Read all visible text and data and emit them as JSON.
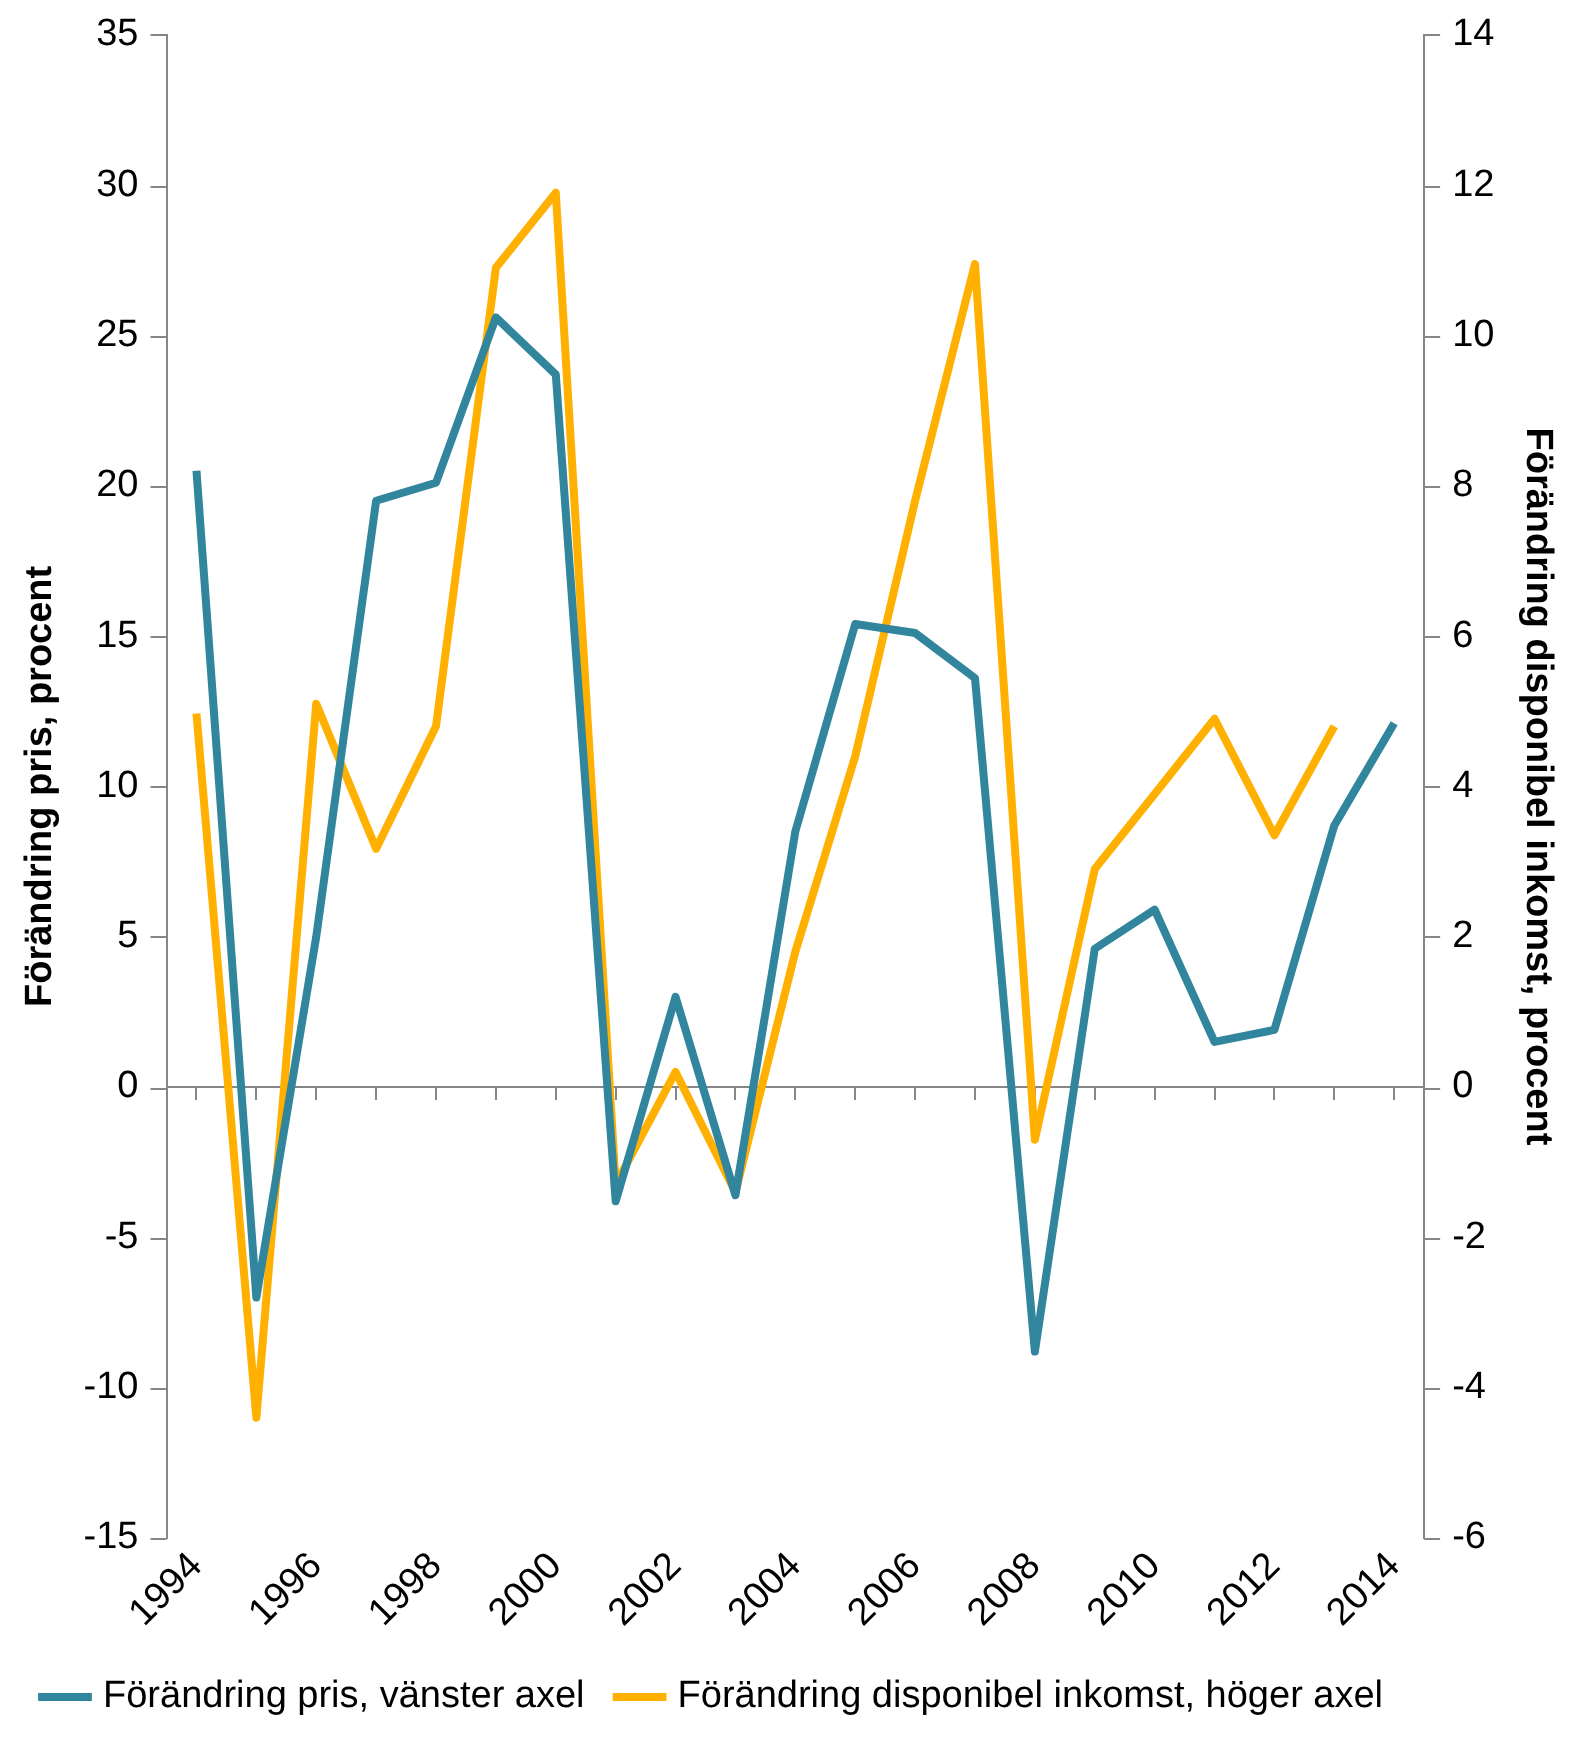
{
  "chart_data": {
    "type": "line",
    "ylabel": "Förändring pris, procent",
    "y2label": "Förändring disponibel inkomst, procent",
    "categories": [
      "1994",
      null,
      "1996",
      null,
      "1998",
      null,
      "2000",
      null,
      "2002",
      null,
      "2004",
      null,
      "2006",
      null,
      "2008",
      null,
      "2010",
      null,
      "2012",
      null,
      "2014"
    ],
    "series": [
      {
        "name": "Förändring pris, vänster axel",
        "color": "#31859c",
        "values": [
          20.5,
          -7.0,
          5.0,
          19.5,
          20.1,
          25.6,
          23.7,
          -3.8,
          3.0,
          -3.6,
          8.5,
          15.4,
          15.1,
          13.6,
          -8.8,
          4.6,
          5.9,
          1.5,
          1.9,
          8.7,
          12.1
        ]
      },
      {
        "name": "Förändring disponibel inkomst, höger axel",
        "color": "#ffb000",
        "axis": "y2",
        "values": [
          4.97,
          -4.4,
          5.1,
          3.17,
          4.8,
          10.9,
          11.9,
          -1.3,
          0.2,
          -1.4,
          1.8,
          4.4,
          7.8,
          10.95,
          -0.7,
          2.9,
          3.9,
          4.9,
          3.35,
          4.8,
          null
        ]
      }
    ],
    "ylim": [
      -15,
      35
    ],
    "yticks": [
      -15,
      -10,
      -5,
      0,
      5,
      10,
      15,
      20,
      25,
      30,
      35
    ],
    "y2lim": [
      -6,
      14
    ],
    "y2ticks": [
      -6,
      -4,
      -2,
      0,
      2,
      4,
      6,
      8,
      10,
      12,
      14
    ],
    "legend": "bottom",
    "marker": "none",
    "line_style": "solid"
  }
}
